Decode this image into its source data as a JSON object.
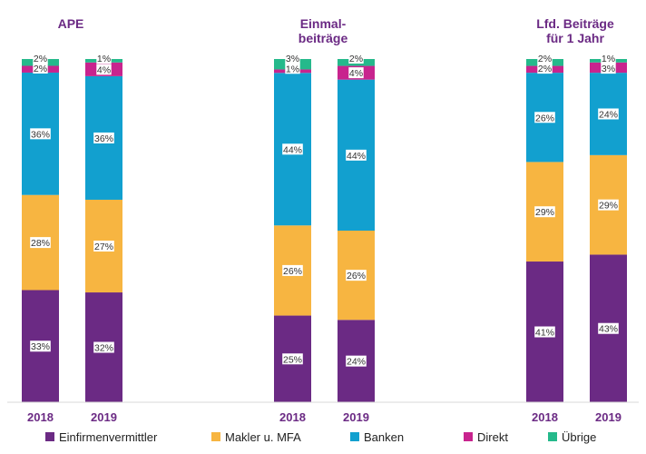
{
  "chart_data": {
    "type": "bar",
    "stacked": true,
    "normalized": true,
    "groups": [
      {
        "title_lines": [
          "APE"
        ],
        "bars": [
          {
            "category": "2018",
            "values": [
              33,
              28,
              36,
              2,
              2
            ],
            "labels": [
              "33%",
              "28%",
              "36%",
              "2%",
              "2%"
            ]
          },
          {
            "category": "2019",
            "values": [
              32,
              27,
              36,
              4,
              1
            ],
            "labels": [
              "32%",
              "27%",
              "36%",
              "4%",
              "1%"
            ]
          }
        ]
      },
      {
        "title_lines": [
          "Einmal-",
          "beiträge"
        ],
        "bars": [
          {
            "category": "2018",
            "values": [
              25,
              26,
              44,
              1,
              3
            ],
            "labels": [
              "25%",
              "26%",
              "44%",
              "1%",
              "3%"
            ]
          },
          {
            "category": "2019",
            "values": [
              24,
              26,
              44,
              4,
              2
            ],
            "labels": [
              "24%",
              "26%",
              "44%",
              "4%",
              "2%"
            ]
          }
        ]
      },
      {
        "title_lines": [
          "Lfd. Beiträge",
          "für 1 Jahr"
        ],
        "bars": [
          {
            "category": "2018",
            "values": [
              41,
              29,
              26,
              2,
              2
            ],
            "labels": [
              "41%",
              "29%",
              "26%",
              "2%",
              "2%"
            ]
          },
          {
            "category": "2019",
            "values": [
              43,
              29,
              24,
              3,
              1
            ],
            "labels": [
              "43%",
              "29%",
              "24%",
              "3%",
              "1%"
            ]
          }
        ]
      }
    ],
    "series": [
      {
        "name": "Einfirmenvermittler",
        "color": "#6b2a84"
      },
      {
        "name": "Makler u. MFA",
        "color": "#f7b541"
      },
      {
        "name": "Banken",
        "color": "#12a0cf"
      },
      {
        "name": "Direkt",
        "color": "#c8248e"
      },
      {
        "name": "Übrige",
        "color": "#25b98b"
      }
    ],
    "legend_position": "bottom",
    "grid": false
  }
}
